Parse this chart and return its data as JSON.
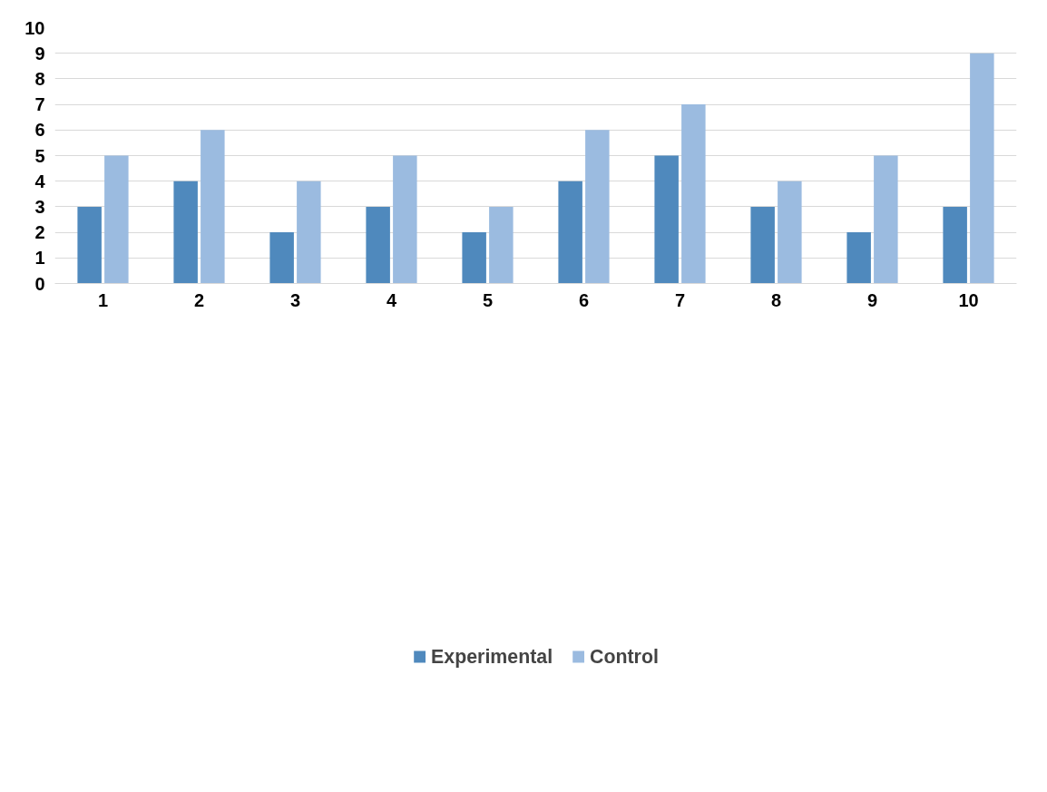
{
  "chart_data": {
    "type": "bar",
    "categories": [
      "1",
      "2",
      "3",
      "4",
      "5",
      "6",
      "7",
      "8",
      "9",
      "10"
    ],
    "series": [
      {
        "name": "Experimental",
        "color": "#4f89bd",
        "values": [
          3,
          4,
          2,
          3,
          2,
          4,
          5,
          3,
          2,
          3
        ]
      },
      {
        "name": "Control",
        "color": "#9bbbe0",
        "values": [
          5,
          6,
          4,
          5,
          3,
          6,
          7,
          4,
          5,
          9
        ]
      }
    ],
    "ylim": [
      0,
      10
    ],
    "yticks": [
      0,
      1,
      2,
      3,
      4,
      5,
      6,
      7,
      8,
      9,
      10
    ],
    "grid": "y",
    "legend": "bottom"
  }
}
